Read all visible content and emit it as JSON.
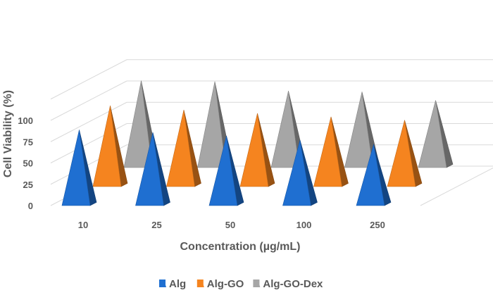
{
  "chart_data": {
    "type": "bar",
    "style": "3d-pyramid",
    "title": "",
    "xlabel": "Concentration (µg/mL)",
    "ylabel": "Cell Viability (%)",
    "ylim": [
      0,
      125
    ],
    "yticks": [
      0,
      25,
      50,
      75,
      100
    ],
    "categories": [
      "10",
      "25",
      "50",
      "100",
      "250"
    ],
    "series": [
      {
        "name": "Alg",
        "color": "#1f6fd1",
        "values": [
          87,
          84,
          80,
          75,
          70
        ]
      },
      {
        "name": "Alg-GO",
        "color": "#f5841f",
        "values": [
          93,
          88,
          84,
          80,
          76
        ]
      },
      {
        "name": "Alg-GO-Dex",
        "color": "#a6a6a6",
        "values": [
          100,
          99,
          88,
          87,
          77
        ]
      }
    ],
    "legend": "bottom",
    "grid": true
  }
}
